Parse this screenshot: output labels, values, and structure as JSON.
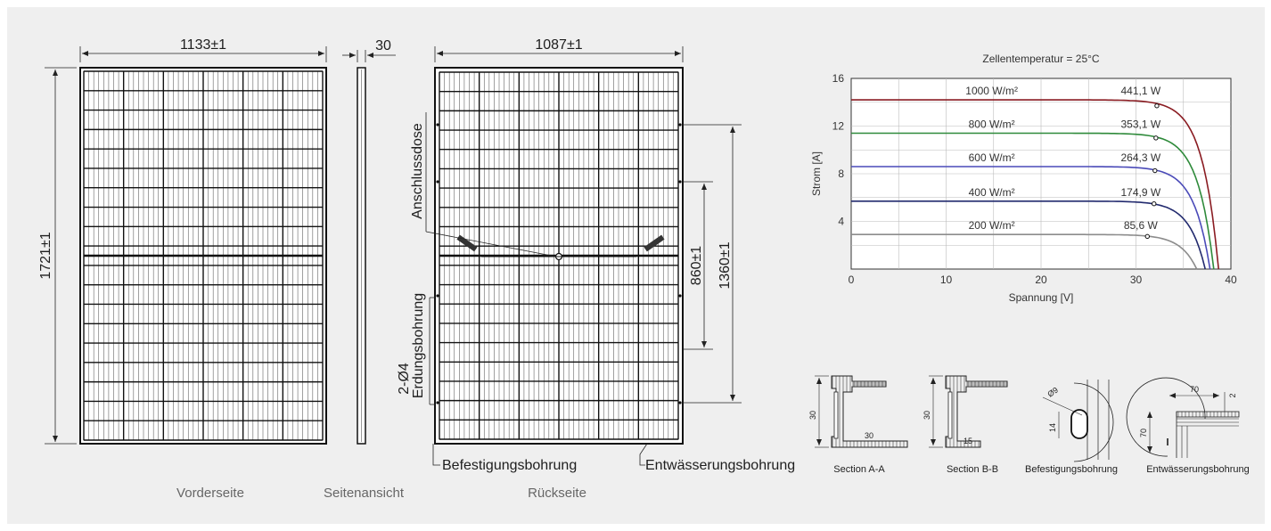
{
  "colors": {
    "background": "#efefef",
    "frame": "#1a1a1a"
  },
  "front": {
    "caption": "Vorderseite",
    "width_label": "1133±1",
    "height_label": "1721±1"
  },
  "side": {
    "caption": "Seitenansicht",
    "thickness_label": "30"
  },
  "back": {
    "caption": "Rückseite",
    "width_label": "1087±1",
    "dim_860": "860±1",
    "dim_1360": "1360±1",
    "junction_box": "Anschlussdose",
    "grounding": "Erdungsbohrung",
    "holes": "2-Ø4",
    "mounting_hole": "Befestigungsbohrung",
    "drain_hole": "Entwässerungsbohrung"
  },
  "sections": {
    "a": {
      "caption": "Section A-A",
      "height": "30",
      "width": "30"
    },
    "b": {
      "caption": "Section B-B",
      "height": "30",
      "width": "15"
    },
    "mount": {
      "caption": "Befestigungsbohrung",
      "diameter": "Ø9",
      "length": "14"
    },
    "drain": {
      "caption": "Entwässerungsbohrung",
      "w": "70",
      "h": "70",
      "d": "2"
    }
  },
  "chart_data": {
    "type": "line",
    "title": "Zellentemperatur = 25°C",
    "xlabel": "Spannung [V]",
    "ylabel": "Strom [A]",
    "xlim": [
      0,
      40
    ],
    "ylim": [
      0,
      16
    ],
    "xticks": [
      "0",
      "10",
      "20",
      "30",
      "40"
    ],
    "yticks": [
      "4",
      "8",
      "12",
      "16"
    ],
    "grid": true,
    "series": [
      {
        "name": "1000 W/m²",
        "power": "441,1 W",
        "isc": 14.2,
        "voc": 38.7,
        "mpp": [
          32.2,
          13.7
        ],
        "color": "#8a1c22"
      },
      {
        "name": "800 W/m²",
        "power": "353,1 W",
        "isc": 11.4,
        "voc": 38.2,
        "mpp": [
          32.1,
          11.0
        ],
        "color": "#2e8a3a"
      },
      {
        "name": "600 W/m²",
        "power": "264,3 W",
        "isc": 8.6,
        "voc": 37.8,
        "mpp": [
          32.0,
          8.26
        ],
        "color": "#4a4ab8"
      },
      {
        "name": "400 W/m²",
        "power": "174,9 W",
        "isc": 5.7,
        "voc": 37.3,
        "mpp": [
          31.9,
          5.48
        ],
        "color": "#222a6e"
      },
      {
        "name": "200 W/m²",
        "power": "85,6 W",
        "isc": 2.9,
        "voc": 36.4,
        "mpp": [
          31.2,
          2.74
        ],
        "color": "#8c8c8c"
      }
    ]
  }
}
